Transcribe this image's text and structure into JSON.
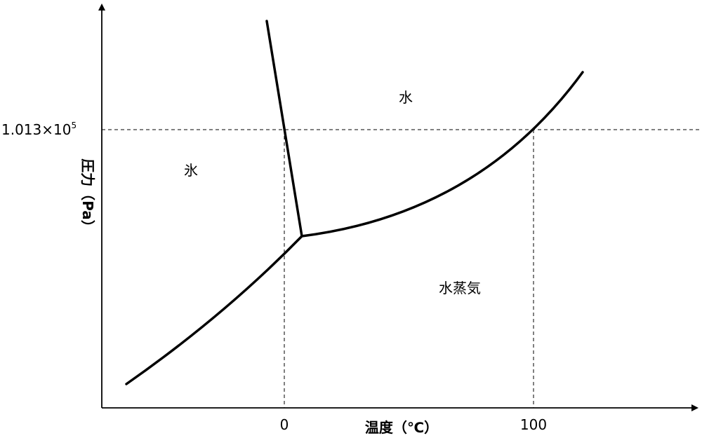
{
  "diagram": {
    "regions": {
      "ice": "氷",
      "water": "水",
      "vapor": "水蒸気"
    },
    "x_axis": {
      "title": "温度（℃）",
      "ticks": [
        "0",
        "100"
      ]
    },
    "y_axis": {
      "title": "圧力（Pa）",
      "tick": {
        "mantissa": "1.013×10",
        "exponent": "5"
      }
    }
  }
}
